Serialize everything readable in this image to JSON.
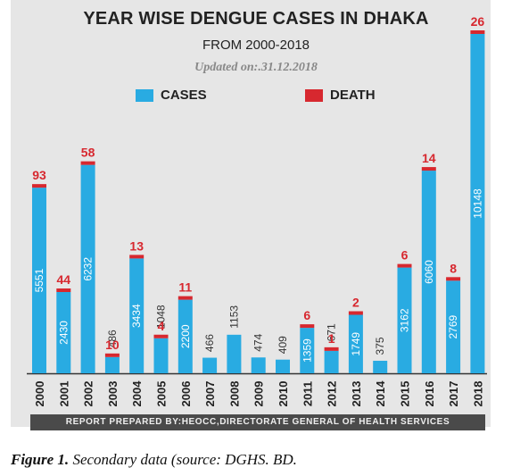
{
  "chart_data": {
    "type": "bar",
    "title": "YEAR WISE DENGUE CASES IN DHAKA",
    "subtitle": "FROM 2000-2018",
    "updated": "Updated on:.31.12.2018",
    "legend": [
      "CASES",
      "DEATH"
    ],
    "legend_placement": "top",
    "categories": [
      "2000",
      "2001",
      "2002",
      "2003",
      "2004",
      "2005",
      "2006",
      "2007",
      "2008",
      "2009",
      "2010",
      "2011",
      "2012",
      "2013",
      "2014",
      "2015",
      "2016",
      "2017",
      "2018"
    ],
    "series": [
      {
        "name": "CASES",
        "color": "#29abe2",
        "values": [
          5551,
          2430,
          6232,
          486,
          3434,
          1048,
          2200,
          466,
          1153,
          474,
          409,
          1359,
          671,
          1749,
          375,
          3162,
          6060,
          2769,
          10148
        ]
      },
      {
        "name": "DEATH",
        "color": "#d7282f",
        "values": [
          93,
          44,
          58,
          10,
          13,
          4,
          11,
          null,
          null,
          null,
          null,
          6,
          1,
          2,
          null,
          6,
          14,
          8,
          26
        ]
      }
    ],
    "grid": false
  },
  "footer": "REPORT PREPARED BY:HEOCC,DIRECTORATE GENERAL OF HEALTH SERVICES",
  "caption": {
    "label": "Figure 1.",
    "text": "Secondary data (source: DGHS. BD."
  }
}
